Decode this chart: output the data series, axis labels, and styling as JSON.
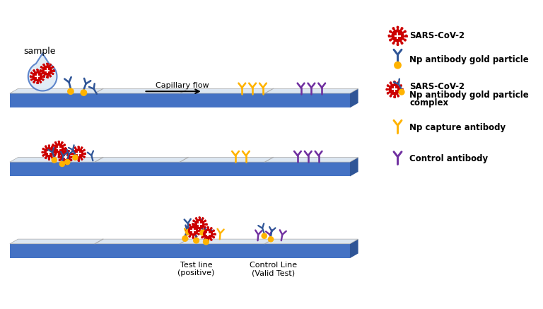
{
  "background_color": "#ffffff",
  "strip_color_top": "#4472C4",
  "strip_color_side": "#2F5597",
  "strip_surface": "#dce6f1",
  "virus_color": "#CC0000",
  "antibody_blue_color": "#2F5597",
  "gold_particle_color": "#FFB300",
  "antibody_yellow_color": "#FFB300",
  "antibody_purple_color": "#7030A0",
  "panel1_label": "sample",
  "panel1_arrow_label": "Capillary flow",
  "panel3_label1": "Test line\n(positive)",
  "panel3_label2": "Control Line\n(Valid Test)"
}
